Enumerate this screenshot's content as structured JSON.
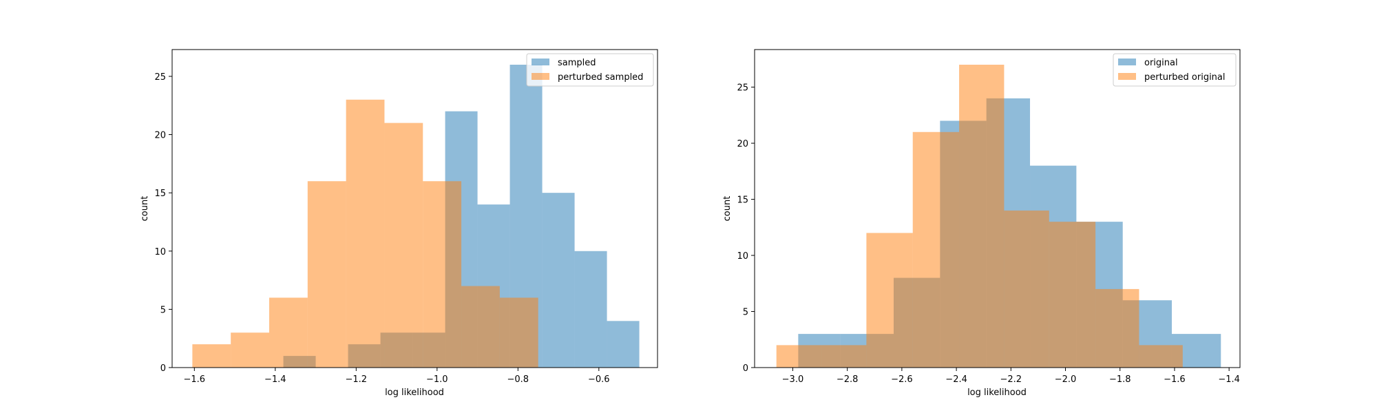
{
  "chart_data": [
    {
      "type": "histogram",
      "xlabel": "log likelihood",
      "ylabel": "count",
      "xlim": [
        -1.655,
        -0.455
      ],
      "ylim": [
        0,
        27.3
      ],
      "xticks": [
        -1.6,
        -1.4,
        -1.2,
        -1.0,
        -0.8,
        -0.6
      ],
      "xtick_labels": [
        "−1.6",
        "−1.4",
        "−1.2",
        "−1.0",
        "−0.8",
        "−0.6"
      ],
      "yticks": [
        0,
        5,
        10,
        15,
        20,
        25
      ],
      "ytick_labels": [
        "0",
        "5",
        "10",
        "15",
        "20",
        "25"
      ],
      "legend": "top-right",
      "grid": false,
      "series": [
        {
          "name": "sampled",
          "color": "#1f77b4",
          "bins": [
            {
              "x0": -1.38,
              "x1": -1.3,
              "count": 1
            },
            {
              "x0": -1.3,
              "x1": -1.22,
              "count": 0
            },
            {
              "x0": -1.22,
              "x1": -1.14,
              "count": 2
            },
            {
              "x0": -1.14,
              "x1": -1.06,
              "count": 3
            },
            {
              "x0": -1.06,
              "x1": -0.98,
              "count": 3
            },
            {
              "x0": -0.98,
              "x1": -0.9,
              "count": 22
            },
            {
              "x0": -0.9,
              "x1": -0.82,
              "count": 14
            },
            {
              "x0": -0.82,
              "x1": -0.74,
              "count": 26
            },
            {
              "x0": -0.74,
              "x1": -0.66,
              "count": 15
            },
            {
              "x0": -0.66,
              "x1": -0.58,
              "count": 10
            },
            {
              "x0": -0.58,
              "x1": -0.5,
              "count": 4
            }
          ]
        },
        {
          "name": "perturbed sampled",
          "color": "#ff7f0e",
          "bins": [
            {
              "x0": -1.605,
              "x1": -1.51,
              "count": 2
            },
            {
              "x0": -1.51,
              "x1": -1.415,
              "count": 3
            },
            {
              "x0": -1.415,
              "x1": -1.32,
              "count": 6
            },
            {
              "x0": -1.32,
              "x1": -1.225,
              "count": 16
            },
            {
              "x0": -1.225,
              "x1": -1.13,
              "count": 23
            },
            {
              "x0": -1.13,
              "x1": -1.035,
              "count": 21
            },
            {
              "x0": -1.035,
              "x1": -0.94,
              "count": 16
            },
            {
              "x0": -0.94,
              "x1": -0.845,
              "count": 7
            },
            {
              "x0": -0.845,
              "x1": -0.75,
              "count": 6
            }
          ]
        }
      ]
    },
    {
      "type": "histogram",
      "xlabel": "log likelihood",
      "ylabel": "count",
      "xlim": [
        -3.14,
        -1.36
      ],
      "ylim": [
        0,
        28.35
      ],
      "xticks": [
        -3.0,
        -2.8,
        -2.6,
        -2.4,
        -2.2,
        -2.0,
        -1.8,
        -1.6,
        -1.4
      ],
      "xtick_labels": [
        "−3.0",
        "−2.8",
        "−2.6",
        "−2.4",
        "−2.2",
        "−2.0",
        "−1.8",
        "−1.6",
        "−1.4"
      ],
      "yticks": [
        0,
        5,
        10,
        15,
        20,
        25
      ],
      "ytick_labels": [
        "0",
        "5",
        "10",
        "15",
        "20",
        "25"
      ],
      "legend": "top-right",
      "grid": false,
      "series": [
        {
          "name": "original",
          "color": "#1f77b4",
          "bins": [
            {
              "x0": -2.98,
              "x1": -2.825,
              "count": 3
            },
            {
              "x0": -2.825,
              "x1": -2.63,
              "count": 3
            },
            {
              "x0": -2.63,
              "x1": -2.46,
              "count": 8
            },
            {
              "x0": -2.46,
              "x1": -2.29,
              "count": 22
            },
            {
              "x0": -2.29,
              "x1": -2.13,
              "count": 24
            },
            {
              "x0": -2.13,
              "x1": -1.96,
              "count": 18
            },
            {
              "x0": -1.96,
              "x1": -1.79,
              "count": 13
            },
            {
              "x0": -1.79,
              "x1": -1.61,
              "count": 6
            },
            {
              "x0": -1.61,
              "x1": -1.43,
              "count": 3
            }
          ]
        },
        {
          "name": "perturbed original",
          "color": "#ff7f0e",
          "bins": [
            {
              "x0": -3.06,
              "x1": -2.895,
              "count": 2
            },
            {
              "x0": -2.895,
              "x1": -2.73,
              "count": 2
            },
            {
              "x0": -2.73,
              "x1": -2.56,
              "count": 12
            },
            {
              "x0": -2.56,
              "x1": -2.39,
              "count": 21
            },
            {
              "x0": -2.39,
              "x1": -2.225,
              "count": 27
            },
            {
              "x0": -2.225,
              "x1": -2.06,
              "count": 14
            },
            {
              "x0": -2.06,
              "x1": -1.89,
              "count": 13
            },
            {
              "x0": -1.89,
              "x1": -1.73,
              "count": 7
            },
            {
              "x0": -1.73,
              "x1": -1.57,
              "count": 2
            }
          ]
        }
      ]
    }
  ]
}
